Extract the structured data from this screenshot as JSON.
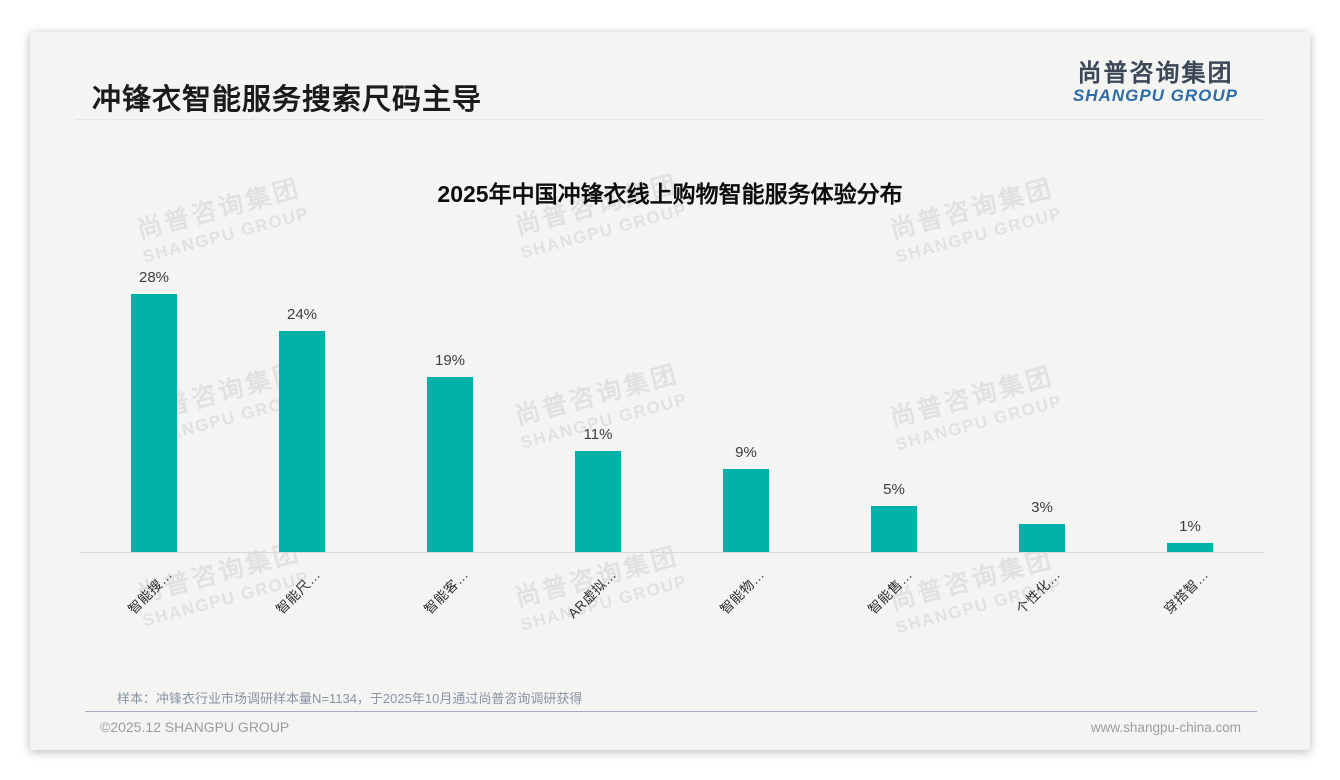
{
  "slide": {
    "page_title": "冲锋衣智能服务搜索尺码主导",
    "logo": {
      "cn": "尚普咨询集团",
      "en": "SHANGPU GROUP"
    },
    "watermark": {
      "cn": "尚普咨询集团",
      "en": "SHANGPU GROUP"
    },
    "sample_note": "样本：冲锋衣行业市场调研样本量N=1134，于2025年10月通过尚普咨询调研获得",
    "footer": {
      "left": "©2025.12 SHANGPU GROUP",
      "right": "www.shangpu-china.com"
    }
  },
  "chart_data": {
    "type": "bar",
    "title": "2025年中国冲锋衣线上购物智能服务体验分布",
    "categories": [
      "智能搜…",
      "智能尺…",
      "智能客…",
      "AR虚拟…",
      "智能物…",
      "智能售…",
      "个性化…",
      "穿搭智…"
    ],
    "values": [
      28,
      24,
      19,
      11,
      9,
      5,
      3,
      1
    ],
    "value_labels": [
      "28%",
      "24%",
      "19%",
      "11%",
      "9%",
      "5%",
      "3%",
      "1%"
    ],
    "unit": "percent",
    "bar_color": "#00b1aa",
    "ylim": [
      0,
      30
    ],
    "grid": false,
    "legend": false,
    "xlabel": "",
    "ylabel": ""
  }
}
